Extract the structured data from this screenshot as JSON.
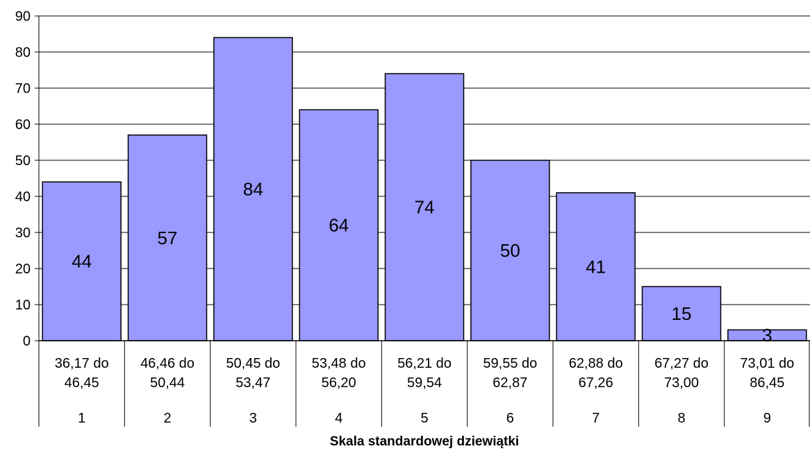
{
  "chart_data": {
    "type": "bar",
    "categories": [
      {
        "range": [
          "36,17 do",
          "46,45"
        ],
        "sten": "1"
      },
      {
        "range": [
          "46,46 do",
          "50,44"
        ],
        "sten": "2"
      },
      {
        "range": [
          "50,45 do",
          "53,47"
        ],
        "sten": "3"
      },
      {
        "range": [
          "53,48 do",
          "56,20"
        ],
        "sten": "4"
      },
      {
        "range": [
          "56,21 do",
          "59,54"
        ],
        "sten": "5"
      },
      {
        "range": [
          "59,55 do",
          "62,87"
        ],
        "sten": "6"
      },
      {
        "range": [
          "62,88 do",
          "67,26"
        ],
        "sten": "7"
      },
      {
        "range": [
          "67,27 do",
          "73,00"
        ],
        "sten": "8"
      },
      {
        "range": [
          "73,01 do",
          "86,45"
        ],
        "sten": "9"
      }
    ],
    "values": [
      44,
      57,
      84,
      64,
      74,
      50,
      41,
      15,
      3
    ],
    "title": "",
    "xlabel": "Skala standardowej dziewiątki",
    "ylabel": "",
    "ylim": [
      0,
      90
    ],
    "yticks": [
      "0",
      "10",
      "20",
      "30",
      "40",
      "50",
      "60",
      "70",
      "80",
      "90"
    ],
    "grid": true,
    "bar_color": "#9999ff",
    "bar_edge_color": "#000000"
  }
}
